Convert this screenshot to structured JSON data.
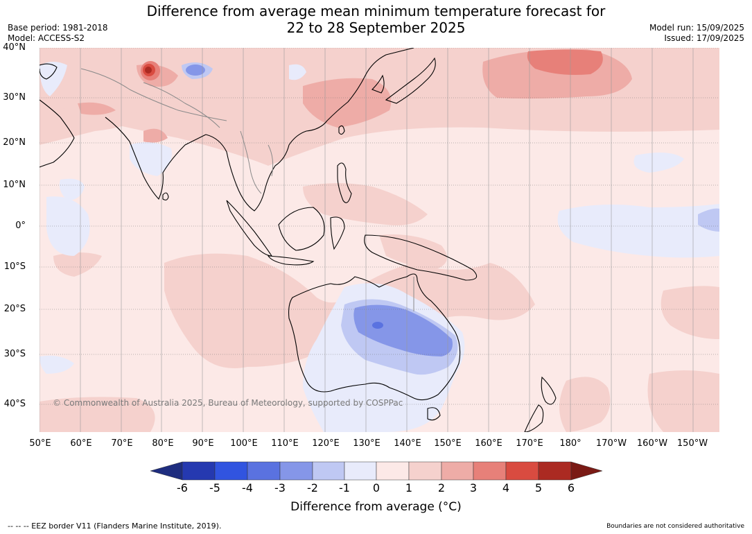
{
  "title_line1": "Difference from average mean minimum temperature forecast for",
  "title_line2": "22 to 28 September 2025",
  "base_period": "Base period: 1981-2018",
  "model": "Model: ACCESS-S2",
  "model_run": "Model run: 15/09/2025",
  "issued": "Issued: 17/09/2025",
  "copyright": "© Commonwealth of Australia 2025, Bureau of Meteorology, supported by COSPPac",
  "lat_labels": [
    "40°N",
    "30°N",
    "20°N",
    "10°N",
    "0°",
    "10°S",
    "20°S",
    "30°S",
    "40°S"
  ],
  "lon_labels": [
    "50°E",
    "60°E",
    "70°E",
    "80°E",
    "90°E",
    "100°E",
    "110°E",
    "120°E",
    "130°E",
    "140°E",
    "150°E",
    "160°E",
    "170°E",
    "180°",
    "170°W",
    "160°W",
    "150°W"
  ],
  "colorbar": {
    "ticks": [
      "-6",
      "-5",
      "-4",
      "-3",
      "-2",
      "-1",
      "0",
      "1",
      "2",
      "3",
      "4",
      "5",
      "6"
    ],
    "colors": [
      "#1e2d7f",
      "#2539b0",
      "#3154e0",
      "#5a72e0",
      "#8596e8",
      "#bfc8f3",
      "#e8ebfb",
      "#fce9e7",
      "#f5d1cd",
      "#eeaca7",
      "#e78079",
      "#d94b40",
      "#ab2a22",
      "#7a1a15"
    ],
    "label": "Difference from average (°C)"
  },
  "footer_left": "--  --  -- EEZ border V11 (Flanders Marine Institute, 2019).",
  "footer_right": "Boundaries are not considered authoritative"
}
